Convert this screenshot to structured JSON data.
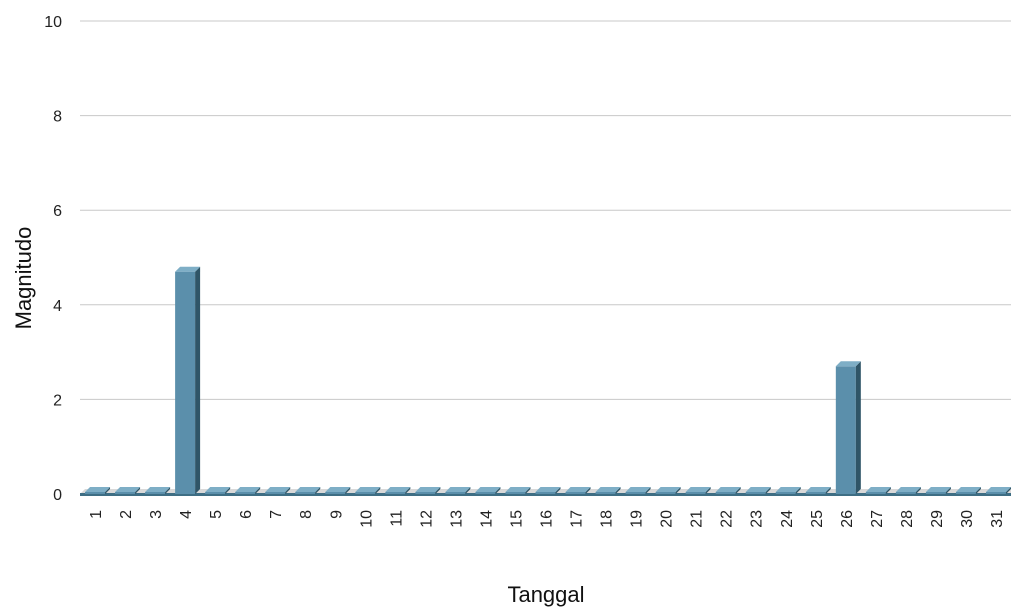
{
  "chart_data": {
    "type": "bar",
    "categories": [
      "1",
      "2",
      "3",
      "4",
      "5",
      "6",
      "7",
      "8",
      "9",
      "10",
      "11",
      "12",
      "13",
      "14",
      "15",
      "16",
      "17",
      "18",
      "19",
      "20",
      "21",
      "22",
      "23",
      "24",
      "25",
      "26",
      "27",
      "28",
      "29",
      "30",
      "31"
    ],
    "values": [
      0,
      0,
      0,
      4.7,
      0,
      0,
      0,
      0,
      0,
      0,
      0,
      0,
      0,
      0,
      0,
      0,
      0,
      0,
      0,
      0,
      0,
      0,
      0,
      0,
      0,
      2.7,
      0,
      0,
      0,
      0,
      0
    ],
    "xlabel": "Tanggal",
    "ylabel": "Magnitudo",
    "ylim": [
      0,
      10
    ],
    "yticks": [
      0,
      2,
      4,
      6,
      8,
      10
    ],
    "grid": true,
    "bar_color": "#5b8fab",
    "bar_side_color": "#2f5567",
    "bar_top_color": "#7eaec6",
    "floor_color": "#d9d9d9"
  }
}
